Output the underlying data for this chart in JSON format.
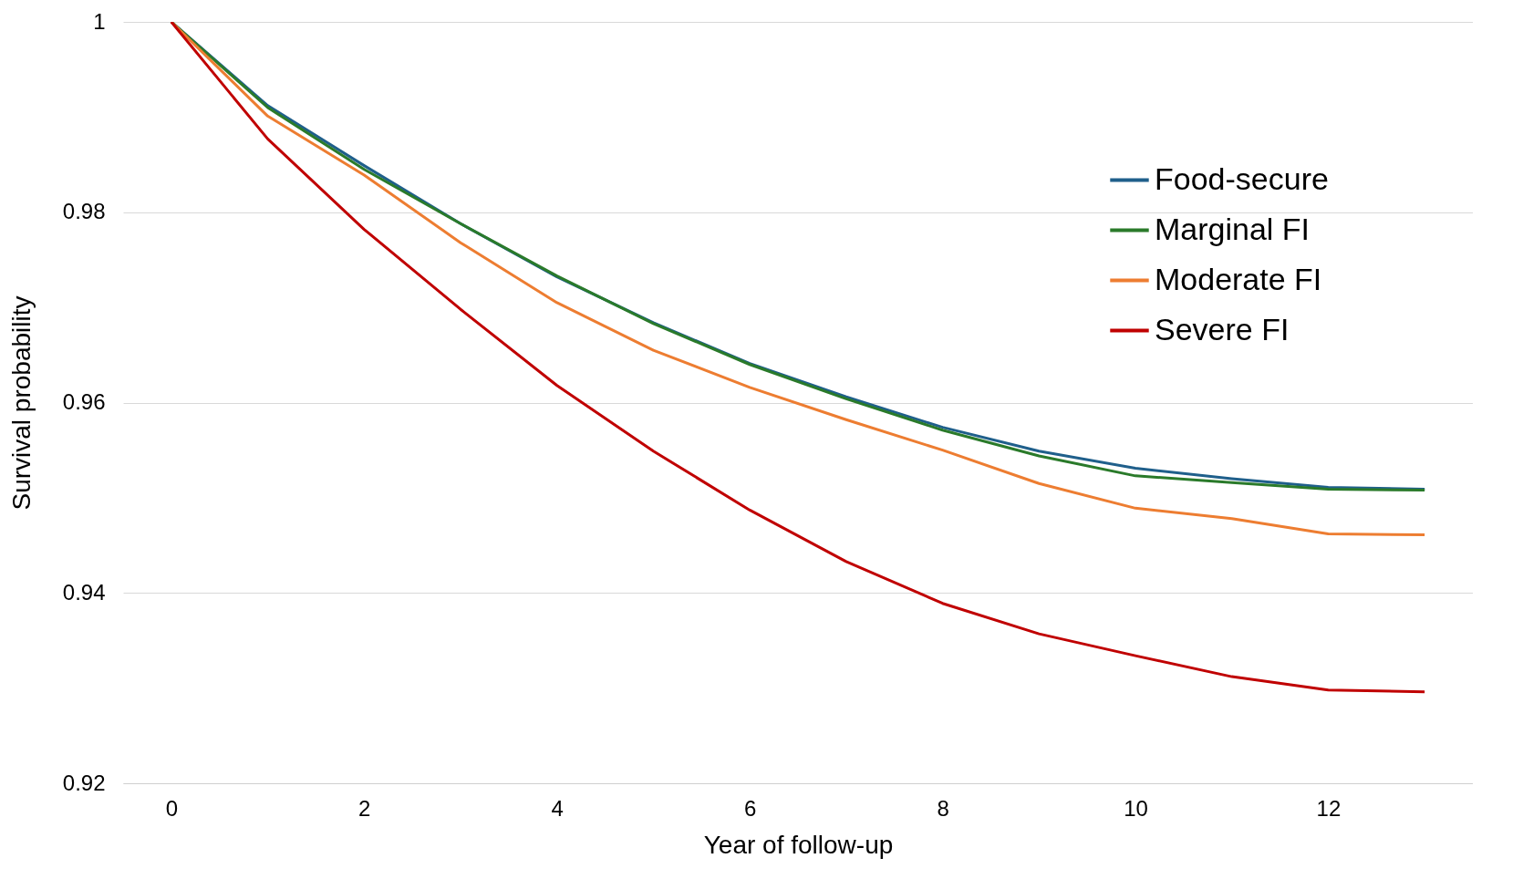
{
  "chart_data": {
    "type": "line",
    "xlabel": "Year of follow-up",
    "ylabel": "Survival probability",
    "x": [
      0,
      1,
      2,
      3,
      4,
      5,
      6,
      7,
      8,
      9,
      10,
      11,
      12,
      13
    ],
    "xlim": [
      -0.5,
      13.5
    ],
    "xticks": [
      0,
      2,
      4,
      6,
      8,
      10,
      12
    ],
    "ylim": [
      0.92,
      1
    ],
    "yticks": [
      0.92,
      0.94,
      0.96,
      0.98,
      1
    ],
    "grid": "y",
    "legend": "top right",
    "series": [
      {
        "name": "Food-secure",
        "color": "#1f5f8b",
        "values": [
          1,
          0.9912,
          0.9849,
          0.9788,
          0.9732,
          0.9684,
          0.9641,
          0.9606,
          0.9574,
          0.9549,
          0.9531,
          0.952,
          0.9511,
          0.9509
        ]
      },
      {
        "name": "Marginal FI",
        "color": "#2a7a2a",
        "values": [
          1,
          0.991,
          0.9845,
          0.9788,
          0.9733,
          0.9683,
          0.964,
          0.9604,
          0.9571,
          0.9544,
          0.9523,
          0.9516,
          0.9509,
          0.9508
        ]
      },
      {
        "name": "Moderate FI",
        "color": "#ed7d31",
        "values": [
          1,
          0.9901,
          0.9839,
          0.9768,
          0.9705,
          0.9655,
          0.9616,
          0.9582,
          0.955,
          0.9515,
          0.9489,
          0.9478,
          0.9462,
          0.9461
        ]
      },
      {
        "name": "Severe FI",
        "color": "#c00000",
        "values": [
          1,
          0.9877,
          0.9782,
          0.9698,
          0.9618,
          0.9549,
          0.9487,
          0.9433,
          0.9389,
          0.9357,
          0.9334,
          0.9312,
          0.9298,
          0.9296
        ]
      }
    ]
  }
}
